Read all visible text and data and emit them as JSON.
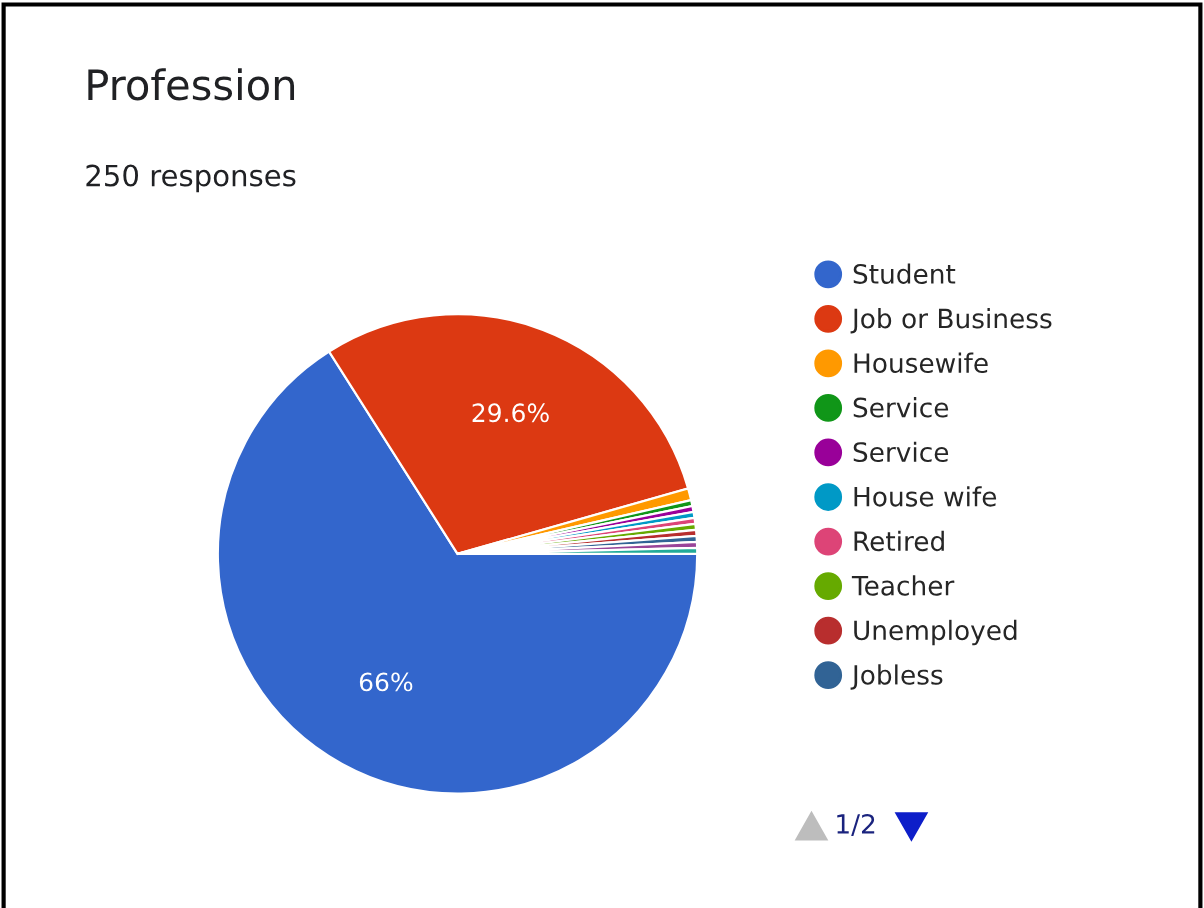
{
  "chart_data": {
    "type": "pie",
    "title": "Profession",
    "subtitle": "250 responses",
    "categories": [
      "Student",
      "Job or Business",
      "Housewife",
      "Service",
      "Service",
      "House wife",
      "Retired",
      "Teacher",
      "Unemployed",
      "Jobless",
      null,
      null
    ],
    "values": [
      66,
      29.6,
      0.8,
      0.4,
      0.4,
      0.4,
      0.4,
      0.4,
      0.4,
      0.4,
      0.4,
      0.4
    ],
    "colors": [
      "#3366cc",
      "#dc3912",
      "#ff9900",
      "#109618",
      "#990099",
      "#0099c6",
      "#dd4477",
      "#66aa00",
      "#b82e2e",
      "#316395",
      "#994499",
      "#22aa99"
    ],
    "value_labels": [
      "66%",
      "29.6%",
      null,
      null,
      null,
      null,
      null,
      null,
      null,
      null,
      null,
      null
    ],
    "legend": "right",
    "annotations": [
      "1/2"
    ]
  }
}
